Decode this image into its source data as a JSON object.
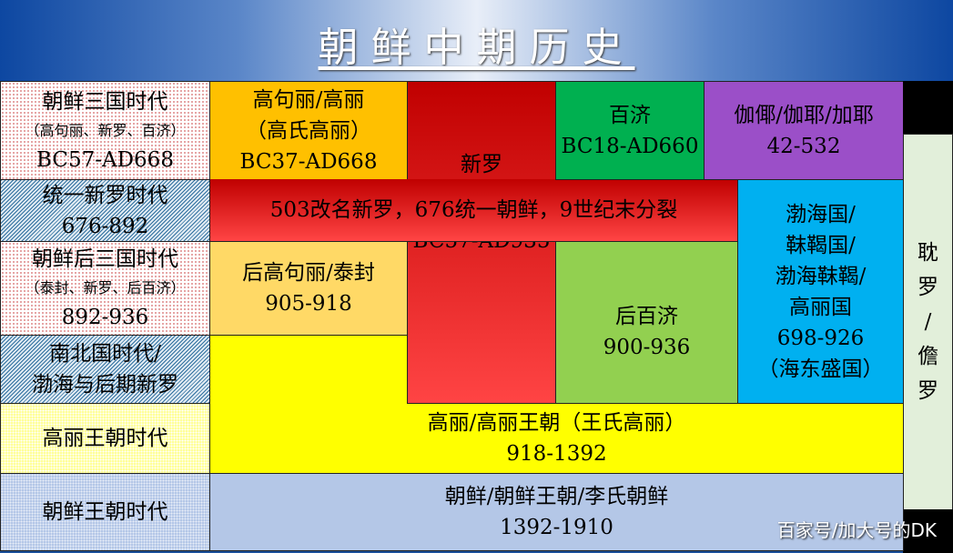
{
  "title": "朝鲜中期历史",
  "periods": [
    {
      "name": "朝鲜三国时代",
      "sub": "（高句丽、新罗、百济）",
      "years": "BC57-AD668"
    },
    {
      "name": "统一新罗时代",
      "years": "676-892"
    },
    {
      "name": "朝鲜后三国时代",
      "sub": "（泰封、新罗、后百济）",
      "years": "892-936"
    },
    {
      "name": "南北国时代/",
      "name2": "渤海与后期新罗"
    },
    {
      "name": "高丽王朝时代"
    },
    {
      "name": "朝鲜王朝时代"
    }
  ],
  "states": {
    "goguryeo": {
      "l1": "高句丽/高丽",
      "l2": "（高氏高丽）",
      "years": "BC37-AD668"
    },
    "silla": {
      "name": "新罗",
      "years": "BC57-AD935"
    },
    "silla_band": "503改名新罗，676统一朝鲜，9世纪末分裂",
    "baekje": {
      "name": "百济",
      "years": "BC18-AD660"
    },
    "gaya": {
      "name": "伽倻/伽耶/加耶",
      "years": "42-532"
    },
    "tamna": {
      "l1": "耽",
      "l2": "罗",
      "l3": "/",
      "l4": "儋",
      "l5": "罗"
    },
    "later_goguryeo": {
      "name": "后高句丽/泰封",
      "years": "905-918"
    },
    "later_baekje": {
      "name": "后百济",
      "years": "900-936"
    },
    "balhae": {
      "l1": "渤海国/",
      "l2": "靺鞨国/",
      "l3": "渤海靺鞨/",
      "l4": "高丽国",
      "years": "698-926",
      "l5": "（海东盛国）"
    },
    "goryeo": {
      "name": "高丽/高丽王朝（王氏高丽）",
      "years": "918-1392"
    },
    "joseon": {
      "name": "朝鲜/朝鲜王朝/李氏朝鲜",
      "years": "1392-1910"
    }
  },
  "watermark": "百家号/加大号的DK",
  "colors": {
    "goguryeo": "#FFC000",
    "silla": "#C00000",
    "baekje": "#00B050",
    "gaya": "#9B4FC8",
    "balhae": "#00B0F0",
    "later_goguryeo": "#FFD966",
    "later_baekje": "#92D050",
    "goryeo": "#FFFF00",
    "joseon": "#B4C7E7",
    "tamna": "#E2EFDA"
  }
}
